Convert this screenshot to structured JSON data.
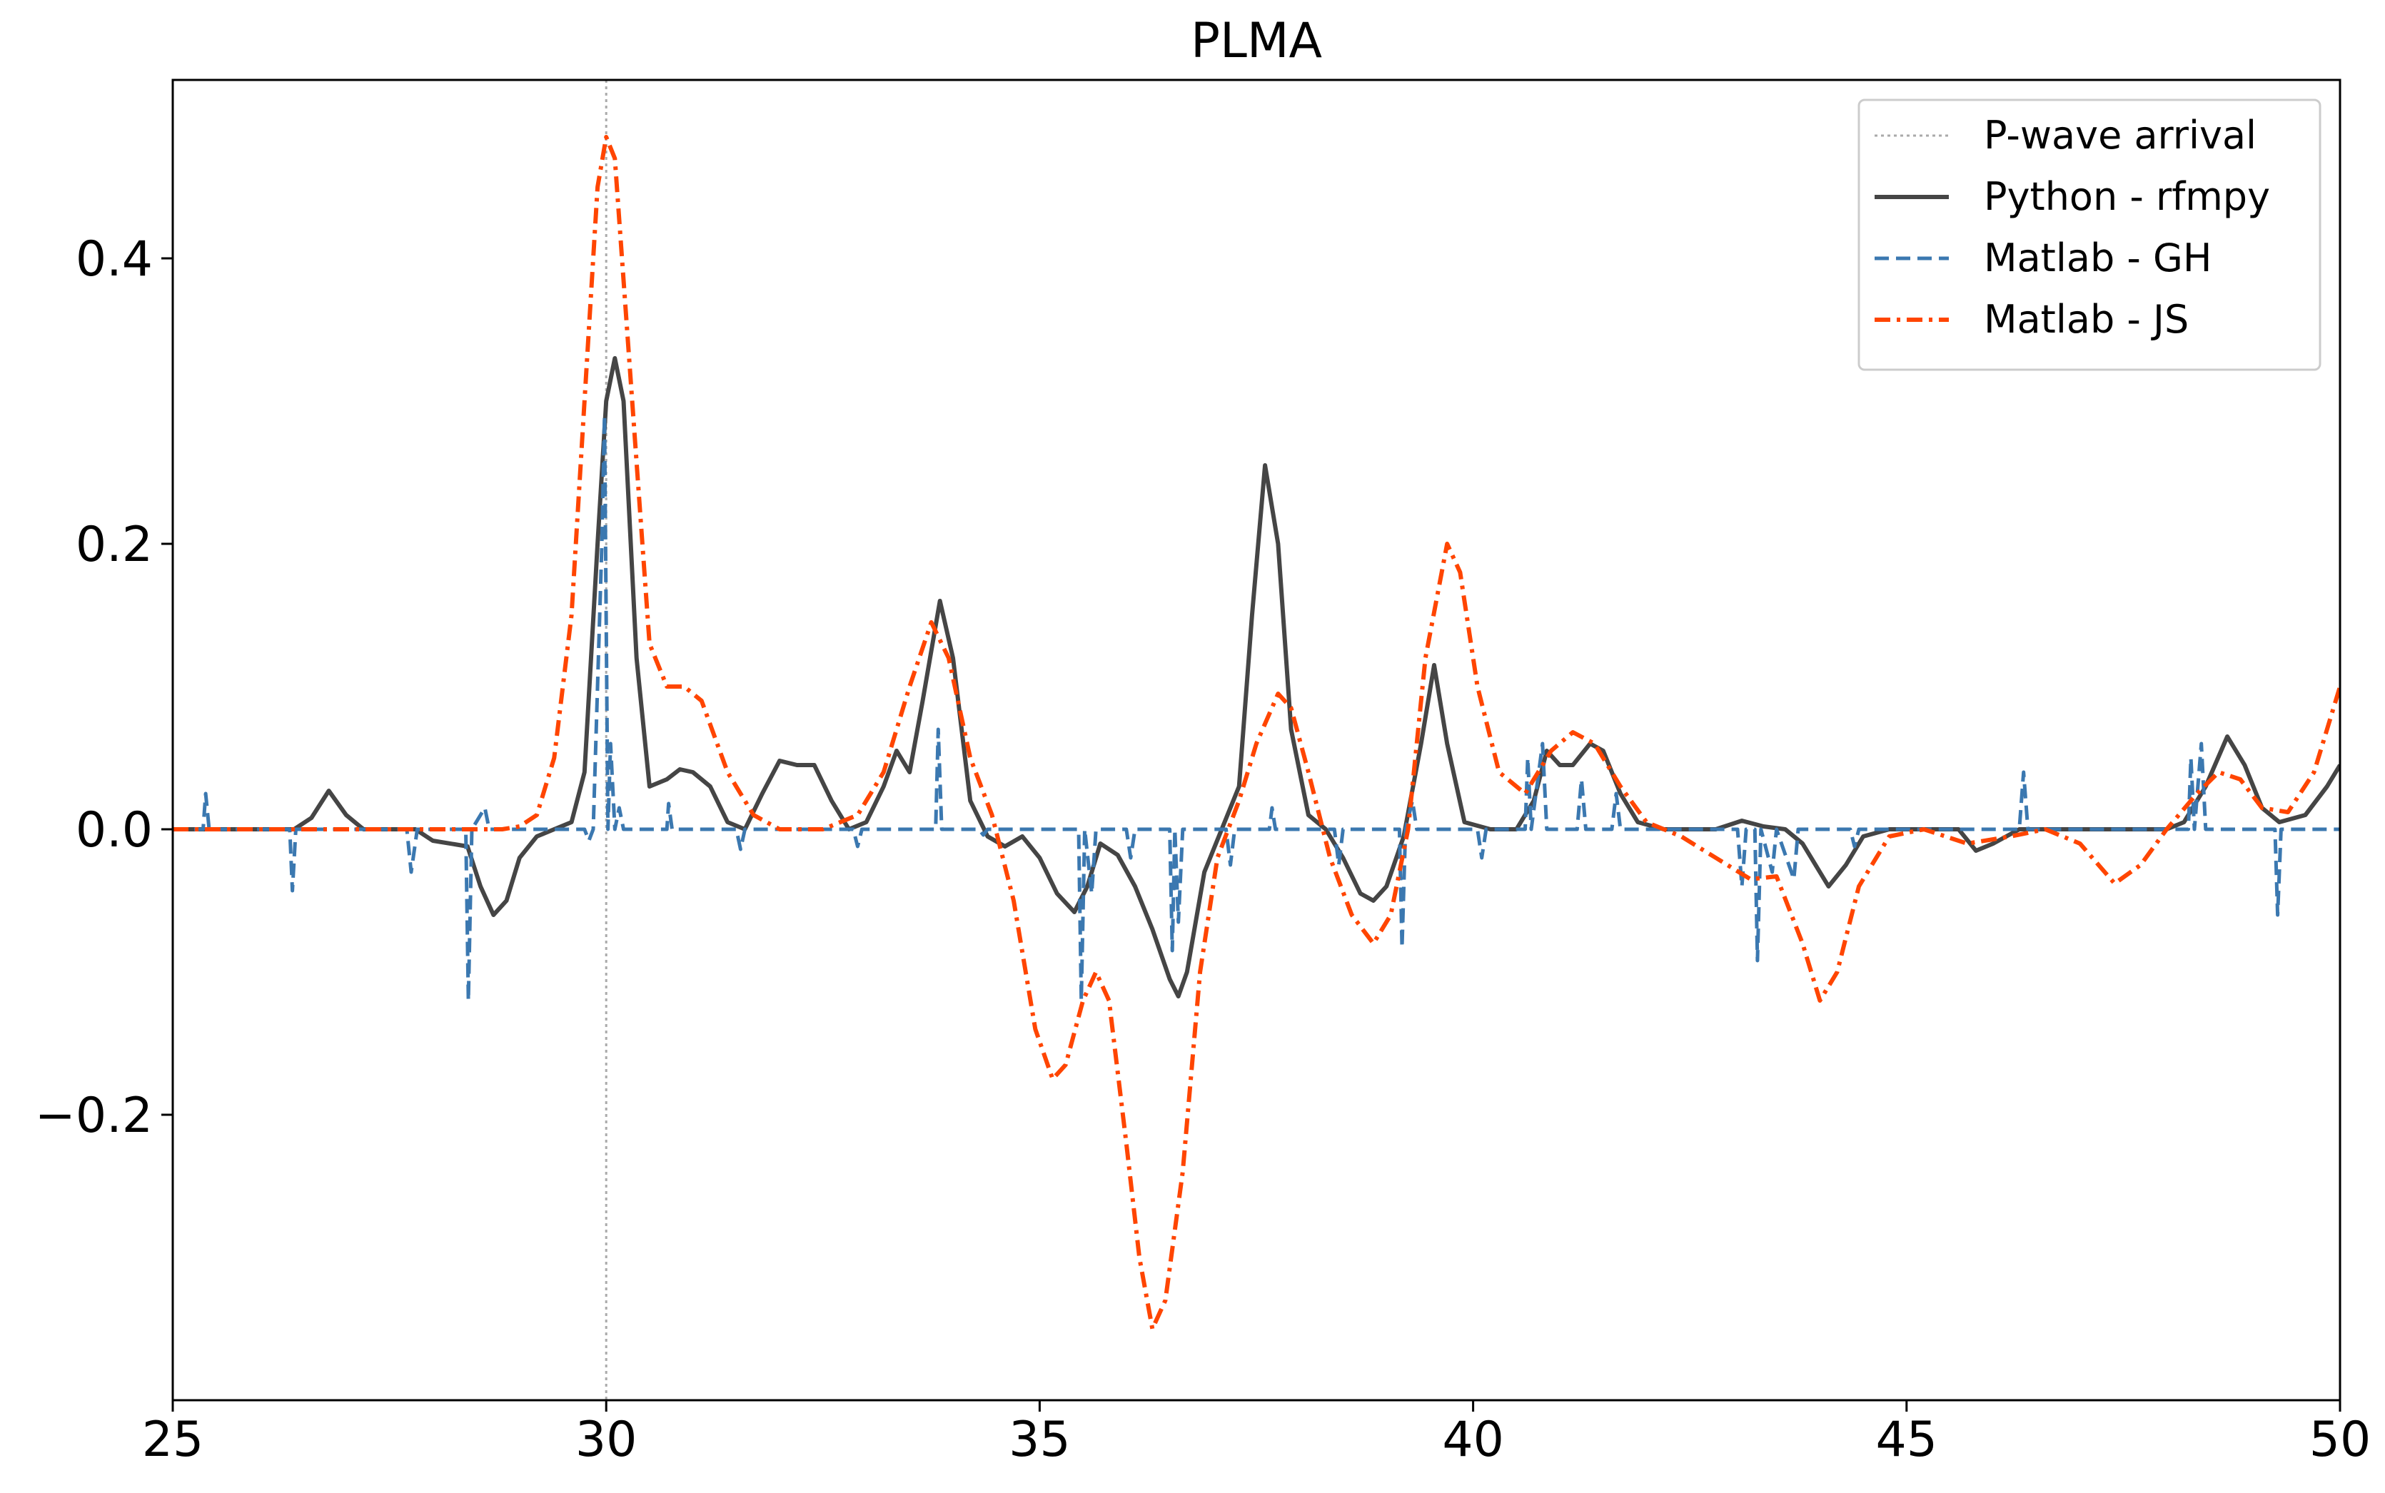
{
  "chart_data": {
    "type": "line",
    "title": "PLMA",
    "xlabel": "",
    "ylabel": "",
    "xlim": [
      25,
      50
    ],
    "ylim": [
      -0.4,
      0.525
    ],
    "xticks": [
      25,
      30,
      35,
      40,
      45,
      50
    ],
    "xtick_labels": [
      "25",
      "30",
      "35",
      "40",
      "45",
      "50"
    ],
    "yticks": [
      -0.2,
      0.0,
      0.2,
      0.4
    ],
    "ytick_labels": [
      "−0.2",
      "0.0",
      "0.2",
      "0.4"
    ],
    "grid": false,
    "legend_position": "top-right",
    "vline": {
      "x": 30.0,
      "name": "P-wave arrival",
      "color": "#aaaaaa",
      "style": "dotted"
    },
    "series": [
      {
        "name": "Python - rfmpy",
        "color": "#454545",
        "style": "solid",
        "points": [
          [
            25.0,
            0.0
          ],
          [
            26.4,
            0.0
          ],
          [
            26.6,
            0.008
          ],
          [
            26.8,
            0.027
          ],
          [
            27.0,
            0.01
          ],
          [
            27.2,
            0.0
          ],
          [
            27.8,
            0.0
          ],
          [
            28.0,
            -0.008
          ],
          [
            28.4,
            -0.012
          ],
          [
            28.55,
            -0.04
          ],
          [
            28.7,
            -0.06
          ],
          [
            28.85,
            -0.05
          ],
          [
            29.0,
            -0.02
          ],
          [
            29.2,
            -0.005
          ],
          [
            29.4,
            0.0
          ],
          [
            29.6,
            0.005
          ],
          [
            29.75,
            0.04
          ],
          [
            29.9,
            0.2
          ],
          [
            30.0,
            0.3
          ],
          [
            30.1,
            0.33
          ],
          [
            30.2,
            0.3
          ],
          [
            30.35,
            0.12
          ],
          [
            30.5,
            0.03
          ],
          [
            30.7,
            0.035
          ],
          [
            30.85,
            0.042
          ],
          [
            31.0,
            0.04
          ],
          [
            31.2,
            0.03
          ],
          [
            31.4,
            0.005
          ],
          [
            31.6,
            0.0
          ],
          [
            31.8,
            0.025
          ],
          [
            32.0,
            0.048
          ],
          [
            32.2,
            0.045
          ],
          [
            32.4,
            0.045
          ],
          [
            32.6,
            0.02
          ],
          [
            32.8,
            0.0
          ],
          [
            33.0,
            0.005
          ],
          [
            33.2,
            0.03
          ],
          [
            33.35,
            0.055
          ],
          [
            33.5,
            0.04
          ],
          [
            33.65,
            0.09
          ],
          [
            33.85,
            0.16
          ],
          [
            34.0,
            0.12
          ],
          [
            34.2,
            0.02
          ],
          [
            34.4,
            -0.005
          ],
          [
            34.6,
            -0.012
          ],
          [
            34.8,
            -0.005
          ],
          [
            35.0,
            -0.02
          ],
          [
            35.2,
            -0.045
          ],
          [
            35.4,
            -0.058
          ],
          [
            35.55,
            -0.04
          ],
          [
            35.7,
            -0.01
          ],
          [
            35.9,
            -0.018
          ],
          [
            36.1,
            -0.04
          ],
          [
            36.3,
            -0.07
          ],
          [
            36.5,
            -0.105
          ],
          [
            36.6,
            -0.117
          ],
          [
            36.7,
            -0.1
          ],
          [
            36.9,
            -0.03
          ],
          [
            37.1,
            0.0
          ],
          [
            37.3,
            0.03
          ],
          [
            37.45,
            0.15
          ],
          [
            37.6,
            0.255
          ],
          [
            37.75,
            0.2
          ],
          [
            37.9,
            0.07
          ],
          [
            38.1,
            0.01
          ],
          [
            38.3,
            0.0
          ],
          [
            38.5,
            -0.02
          ],
          [
            38.7,
            -0.045
          ],
          [
            38.85,
            -0.05
          ],
          [
            39.0,
            -0.04
          ],
          [
            39.2,
            -0.005
          ],
          [
            39.4,
            0.06
          ],
          [
            39.55,
            0.115
          ],
          [
            39.7,
            0.06
          ],
          [
            39.9,
            0.005
          ],
          [
            40.2,
            0.0
          ],
          [
            40.5,
            0.0
          ],
          [
            40.7,
            0.02
          ],
          [
            40.85,
            0.055
          ],
          [
            41.0,
            0.045
          ],
          [
            41.15,
            0.045
          ],
          [
            41.35,
            0.06
          ],
          [
            41.5,
            0.055
          ],
          [
            41.7,
            0.025
          ],
          [
            41.9,
            0.005
          ],
          [
            42.2,
            0.0
          ],
          [
            42.8,
            0.0
          ],
          [
            43.1,
            0.006
          ],
          [
            43.35,
            0.002
          ],
          [
            43.6,
            0.0
          ],
          [
            43.8,
            -0.01
          ],
          [
            44.1,
            -0.04
          ],
          [
            44.3,
            -0.025
          ],
          [
            44.5,
            -0.005
          ],
          [
            44.8,
            0.0
          ],
          [
            45.6,
            0.0
          ],
          [
            45.8,
            -0.015
          ],
          [
            46.0,
            -0.01
          ],
          [
            46.3,
            0.0
          ],
          [
            48.0,
            0.0
          ],
          [
            48.2,
            0.005
          ],
          [
            48.45,
            0.03
          ],
          [
            48.7,
            0.065
          ],
          [
            48.9,
            0.045
          ],
          [
            49.1,
            0.015
          ],
          [
            49.3,
            0.005
          ],
          [
            49.6,
            0.01
          ],
          [
            49.85,
            0.03
          ],
          [
            50.0,
            0.045
          ]
        ]
      },
      {
        "name": "Matlab - GH",
        "color": "#3b78b0",
        "style": "dashed",
        "points": [
          [
            25.0,
            0.0
          ],
          [
            25.35,
            0.0
          ],
          [
            25.38,
            0.025
          ],
          [
            25.42,
            0.0
          ],
          [
            26.35,
            0.0
          ],
          [
            26.38,
            -0.043
          ],
          [
            26.42,
            0.0
          ],
          [
            27.7,
            0.0
          ],
          [
            27.75,
            -0.03
          ],
          [
            27.82,
            0.0
          ],
          [
            28.38,
            0.0
          ],
          [
            28.41,
            -0.12
          ],
          [
            28.45,
            0.0
          ],
          [
            28.6,
            0.015
          ],
          [
            28.65,
            0.0
          ],
          [
            29.75,
            0.0
          ],
          [
            29.8,
            -0.008
          ],
          [
            29.85,
            0.0
          ],
          [
            29.95,
            0.2
          ],
          [
            29.98,
            0.29
          ],
          [
            30.02,
            0.0
          ],
          [
            30.05,
            0.06
          ],
          [
            30.1,
            0.0
          ],
          [
            30.15,
            0.015
          ],
          [
            30.2,
            0.0
          ],
          [
            30.7,
            0.0
          ],
          [
            30.72,
            0.018
          ],
          [
            30.76,
            0.0
          ],
          [
            31.5,
            0.0
          ],
          [
            31.55,
            -0.014
          ],
          [
            31.6,
            0.0
          ],
          [
            32.85,
            0.0
          ],
          [
            32.9,
            -0.012
          ],
          [
            32.95,
            0.0
          ],
          [
            33.8,
            0.0
          ],
          [
            33.83,
            0.07
          ],
          [
            33.87,
            0.0
          ],
          [
            34.3,
            0.0
          ],
          [
            34.35,
            -0.004
          ],
          [
            34.4,
            0.0
          ],
          [
            35.45,
            0.0
          ],
          [
            35.48,
            -0.12
          ],
          [
            35.52,
            0.0
          ],
          [
            35.6,
            -0.045
          ],
          [
            35.65,
            0.0
          ],
          [
            36.0,
            0.0
          ],
          [
            36.05,
            -0.02
          ],
          [
            36.1,
            0.0
          ],
          [
            36.5,
            0.0
          ],
          [
            36.53,
            -0.085
          ],
          [
            36.56,
            0.0
          ],
          [
            36.6,
            -0.065
          ],
          [
            36.65,
            0.0
          ],
          [
            37.15,
            0.0
          ],
          [
            37.2,
            -0.025
          ],
          [
            37.25,
            0.0
          ],
          [
            37.65,
            0.0
          ],
          [
            37.68,
            0.015
          ],
          [
            37.72,
            0.0
          ],
          [
            38.4,
            0.0
          ],
          [
            38.45,
            -0.025
          ],
          [
            38.5,
            0.0
          ],
          [
            39.15,
            0.0
          ],
          [
            39.18,
            -0.083
          ],
          [
            39.22,
            0.0
          ],
          [
            39.3,
            0.02
          ],
          [
            39.35,
            0.0
          ],
          [
            40.05,
            0.0
          ],
          [
            40.1,
            -0.02
          ],
          [
            40.15,
            0.0
          ],
          [
            40.6,
            0.0
          ],
          [
            40.63,
            0.05
          ],
          [
            40.67,
            0.0
          ],
          [
            40.8,
            0.06
          ],
          [
            40.85,
            0.0
          ],
          [
            41.2,
            0.0
          ],
          [
            41.25,
            0.035
          ],
          [
            41.3,
            0.0
          ],
          [
            41.6,
            0.0
          ],
          [
            41.65,
            0.025
          ],
          [
            41.7,
            0.0
          ],
          [
            43.05,
            0.0
          ],
          [
            43.1,
            -0.04
          ],
          [
            43.15,
            0.0
          ],
          [
            43.25,
            0.0
          ],
          [
            43.28,
            -0.092
          ],
          [
            43.32,
            0.0
          ],
          [
            43.45,
            -0.03
          ],
          [
            43.5,
            0.0
          ],
          [
            43.7,
            -0.035
          ],
          [
            43.75,
            0.0
          ],
          [
            44.35,
            0.0
          ],
          [
            44.4,
            -0.012
          ],
          [
            44.45,
            0.0
          ],
          [
            46.3,
            0.0
          ],
          [
            46.35,
            0.04
          ],
          [
            46.4,
            0.0
          ],
          [
            48.25,
            0.0
          ],
          [
            48.28,
            0.05
          ],
          [
            48.32,
            0.0
          ],
          [
            48.4,
            0.06
          ],
          [
            48.45,
            0.0
          ],
          [
            49.25,
            0.0
          ],
          [
            49.28,
            -0.06
          ],
          [
            49.32,
            0.0
          ],
          [
            50.0,
            0.0
          ]
        ]
      },
      {
        "name": "Matlab - JS",
        "color": "#ff4500",
        "style": "dashdot",
        "points": [
          [
            25.0,
            0.0
          ],
          [
            28.8,
            0.0
          ],
          [
            29.0,
            0.002
          ],
          [
            29.2,
            0.01
          ],
          [
            29.4,
            0.05
          ],
          [
            29.6,
            0.15
          ],
          [
            29.75,
            0.3
          ],
          [
            29.9,
            0.45
          ],
          [
            30.0,
            0.485
          ],
          [
            30.1,
            0.47
          ],
          [
            30.3,
            0.3
          ],
          [
            30.5,
            0.13
          ],
          [
            30.7,
            0.1
          ],
          [
            30.9,
            0.1
          ],
          [
            31.1,
            0.09
          ],
          [
            31.4,
            0.04
          ],
          [
            31.7,
            0.01
          ],
          [
            32.0,
            0.0
          ],
          [
            32.5,
            0.0
          ],
          [
            32.9,
            0.01
          ],
          [
            33.2,
            0.04
          ],
          [
            33.5,
            0.1
          ],
          [
            33.75,
            0.145
          ],
          [
            33.95,
            0.12
          ],
          [
            34.2,
            0.05
          ],
          [
            34.45,
            0.01
          ],
          [
            34.7,
            -0.05
          ],
          [
            34.95,
            -0.14
          ],
          [
            35.15,
            -0.175
          ],
          [
            35.3,
            -0.165
          ],
          [
            35.5,
            -0.12
          ],
          [
            35.65,
            -0.1
          ],
          [
            35.8,
            -0.12
          ],
          [
            36.0,
            -0.22
          ],
          [
            36.15,
            -0.3
          ],
          [
            36.3,
            -0.35
          ],
          [
            36.45,
            -0.33
          ],
          [
            36.65,
            -0.24
          ],
          [
            36.85,
            -0.1
          ],
          [
            37.05,
            -0.02
          ],
          [
            37.3,
            0.02
          ],
          [
            37.5,
            0.06
          ],
          [
            37.75,
            0.095
          ],
          [
            37.9,
            0.085
          ],
          [
            38.1,
            0.04
          ],
          [
            38.35,
            -0.02
          ],
          [
            38.6,
            -0.06
          ],
          [
            38.85,
            -0.08
          ],
          [
            39.05,
            -0.06
          ],
          [
            39.25,
            0.0
          ],
          [
            39.45,
            0.12
          ],
          [
            39.7,
            0.2
          ],
          [
            39.85,
            0.18
          ],
          [
            40.05,
            0.1
          ],
          [
            40.3,
            0.04
          ],
          [
            40.6,
            0.025
          ],
          [
            40.9,
            0.055
          ],
          [
            41.15,
            0.068
          ],
          [
            41.4,
            0.06
          ],
          [
            41.7,
            0.03
          ],
          [
            42.0,
            0.005
          ],
          [
            42.4,
            -0.005
          ],
          [
            42.8,
            -0.02
          ],
          [
            43.2,
            -0.035
          ],
          [
            43.5,
            -0.033
          ],
          [
            43.8,
            -0.08
          ],
          [
            44.0,
            -0.12
          ],
          [
            44.2,
            -0.1
          ],
          [
            44.45,
            -0.04
          ],
          [
            44.8,
            -0.005
          ],
          [
            45.2,
            0.0
          ],
          [
            45.7,
            -0.01
          ],
          [
            46.2,
            -0.005
          ],
          [
            46.6,
            0.0
          ],
          [
            47.0,
            -0.01
          ],
          [
            47.4,
            -0.038
          ],
          [
            47.7,
            -0.025
          ],
          [
            48.0,
            0.0
          ],
          [
            48.35,
            0.025
          ],
          [
            48.6,
            0.04
          ],
          [
            48.85,
            0.035
          ],
          [
            49.1,
            0.015
          ],
          [
            49.4,
            0.012
          ],
          [
            49.7,
            0.04
          ],
          [
            50.0,
            0.1
          ]
        ]
      }
    ]
  }
}
